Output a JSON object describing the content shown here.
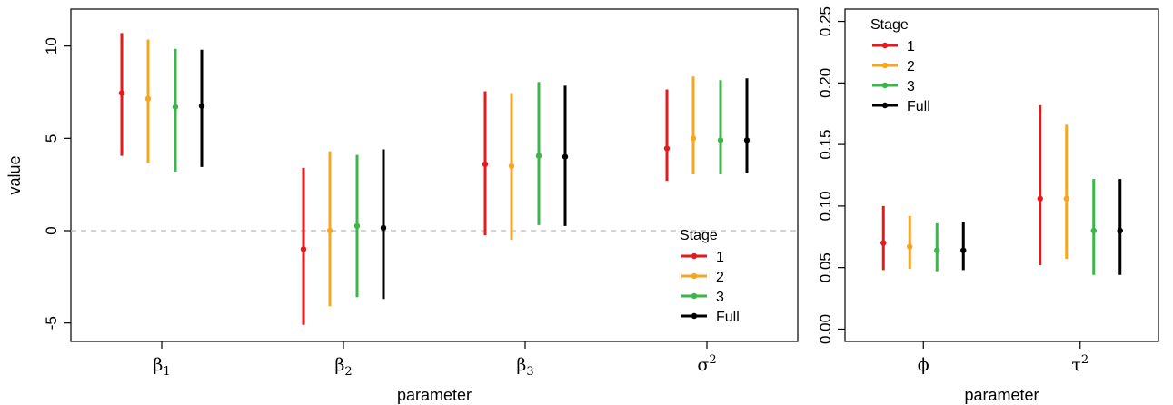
{
  "colors": {
    "1": "#e41a1c",
    "2": "#f5a623",
    "3": "#3cb54a",
    "Full": "#000000"
  },
  "chart_data": [
    {
      "type": "errorbar",
      "xlabel": "parameter",
      "ylabel": "value",
      "ylim": [
        -6,
        12
      ],
      "yticks": [
        -5,
        0,
        5,
        10
      ],
      "reference_line": 0,
      "legend": {
        "title": "Stage",
        "position": "bottom-right",
        "entries": [
          "1",
          "2",
          "3",
          "Full"
        ]
      },
      "categories": [
        {
          "base": "β",
          "sub": "1",
          "sup": ""
        },
        {
          "base": "β",
          "sub": "2",
          "sup": ""
        },
        {
          "base": "β",
          "sub": "3",
          "sup": ""
        },
        {
          "base": "σ",
          "sub": "",
          "sup": "2"
        }
      ],
      "series": [
        {
          "name": "1",
          "values": [
            {
              "est": 7.45,
              "lo": 4.05,
              "hi": 10.7
            },
            {
              "est": -1.0,
              "lo": -5.1,
              "hi": 3.4
            },
            {
              "est": 3.6,
              "lo": -0.25,
              "hi": 7.55
            },
            {
              "est": 4.45,
              "lo": 2.7,
              "hi": 7.65
            }
          ]
        },
        {
          "name": "2",
          "values": [
            {
              "est": 7.15,
              "lo": 3.65,
              "hi": 10.35
            },
            {
              "est": 0.0,
              "lo": -4.1,
              "hi": 4.3
            },
            {
              "est": 3.5,
              "lo": -0.5,
              "hi": 7.45
            },
            {
              "est": 5.0,
              "lo": 3.05,
              "hi": 8.35
            }
          ]
        },
        {
          "name": "3",
          "values": [
            {
              "est": 6.7,
              "lo": 3.2,
              "hi": 9.85
            },
            {
              "est": 0.25,
              "lo": -3.6,
              "hi": 4.1
            },
            {
              "est": 4.05,
              "lo": 0.3,
              "hi": 8.05
            },
            {
              "est": 4.9,
              "lo": 3.05,
              "hi": 8.15
            }
          ]
        },
        {
          "name": "Full",
          "values": [
            {
              "est": 6.75,
              "lo": 3.45,
              "hi": 9.8
            },
            {
              "est": 0.15,
              "lo": -3.7,
              "hi": 4.4
            },
            {
              "est": 4.0,
              "lo": 0.25,
              "hi": 7.85
            },
            {
              "est": 4.9,
              "lo": 3.1,
              "hi": 8.25
            }
          ]
        }
      ]
    },
    {
      "type": "errorbar",
      "xlabel": "parameter",
      "ylabel": "",
      "ylim": [
        -0.01,
        0.26
      ],
      "yticks": [
        0.0,
        0.05,
        0.1,
        0.15,
        0.2,
        0.25
      ],
      "ytick_labels": [
        "0.00",
        "0.05",
        "0.10",
        "0.15",
        "0.20",
        "0.25"
      ],
      "legend": {
        "title": "Stage",
        "position": "top-left",
        "entries": [
          "1",
          "2",
          "3",
          "Full"
        ]
      },
      "categories": [
        {
          "base": "ϕ",
          "sub": "",
          "sup": ""
        },
        {
          "base": "τ",
          "sub": "",
          "sup": "2"
        }
      ],
      "series": [
        {
          "name": "1",
          "values": [
            {
              "est": 0.07,
              "lo": 0.048,
              "hi": 0.1
            },
            {
              "est": 0.106,
              "lo": 0.052,
              "hi": 0.182
            }
          ]
        },
        {
          "name": "2",
          "values": [
            {
              "est": 0.067,
              "lo": 0.049,
              "hi": 0.092
            },
            {
              "est": 0.106,
              "lo": 0.057,
              "hi": 0.166
            }
          ]
        },
        {
          "name": "3",
          "values": [
            {
              "est": 0.064,
              "lo": 0.047,
              "hi": 0.086
            },
            {
              "est": 0.08,
              "lo": 0.044,
              "hi": 0.122
            }
          ]
        },
        {
          "name": "Full",
          "values": [
            {
              "est": 0.064,
              "lo": 0.048,
              "hi": 0.087
            },
            {
              "est": 0.08,
              "lo": 0.044,
              "hi": 0.122
            }
          ]
        }
      ]
    }
  ]
}
